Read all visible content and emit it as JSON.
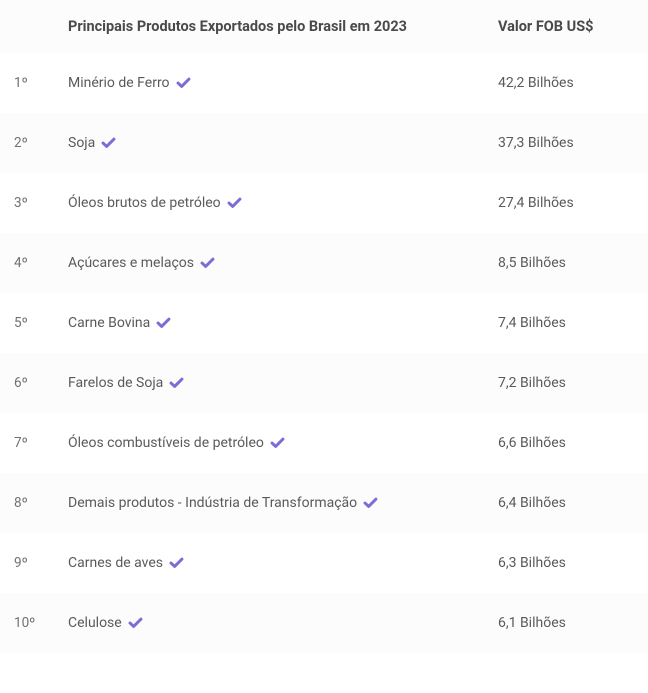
{
  "type": "table",
  "columns": {
    "rank": "",
    "product": "Principais Produtos Exportados pelo Brasil em 2023",
    "value": "Valor FOB US$"
  },
  "rows": [
    {
      "rank": "1º",
      "product": "Minério de Ferro",
      "value": "42,2 Bilhões"
    },
    {
      "rank": "2º",
      "product": "Soja",
      "value": "37,3 Bilhões"
    },
    {
      "rank": "3º",
      "product": "Óleos brutos de petróleo",
      "value": "27,4 Bilhões"
    },
    {
      "rank": "4º",
      "product": "Açúcares e melaços",
      "value": "8,5 Bilhões"
    },
    {
      "rank": "5º",
      "product": "Carne Bovina",
      "value": "7,4 Bilhões"
    },
    {
      "rank": "6º",
      "product": "Farelos de Soja",
      "value": "7,2 Bilhões"
    },
    {
      "rank": "7º",
      "product": "Óleos combustíveis de petróleo",
      "value": "6,6 Bilhões"
    },
    {
      "rank": "8º",
      "product": "Demais produtos - Indústria de Transformação",
      "value": "6,4 Bilhões"
    },
    {
      "rank": "9º",
      "product": "Carnes de aves",
      "value": "6,3 Bilhões"
    },
    {
      "rank": "10º",
      "product": "Celulose",
      "value": "6,1 Bilhões"
    }
  ],
  "style": {
    "icon_color": "#7a6dd6",
    "alt_row_bg": "#fcfcfc",
    "text_color": "#5a5a5a",
    "header_text_color": "#4a4a4a",
    "background_color": "#ffffff",
    "font_size_header": 14.5,
    "font_size_cell": 14,
    "column_widths": {
      "rank": 56,
      "product": 430
    }
  }
}
